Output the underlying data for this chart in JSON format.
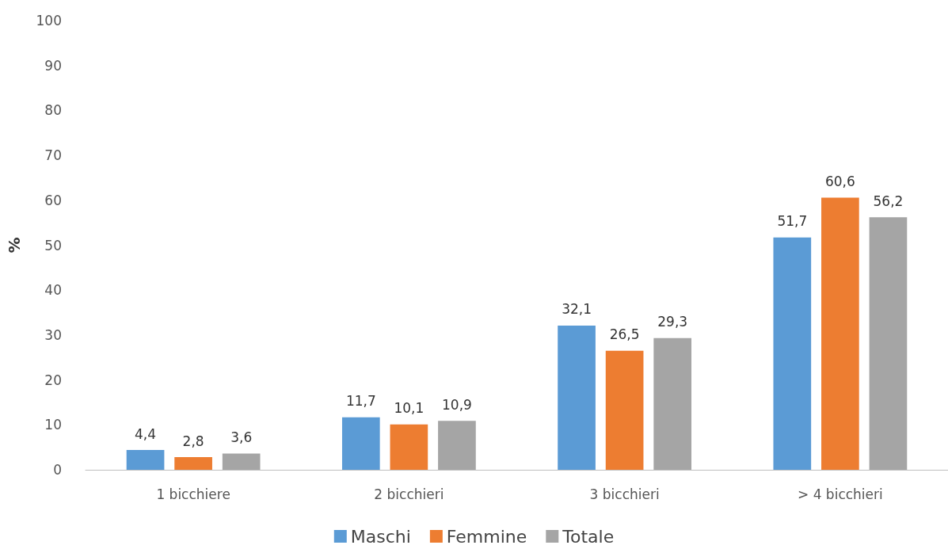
{
  "chart_data": {
    "type": "bar",
    "ylabel": "%",
    "categories": [
      "1 bicchiere",
      "2 bicchieri",
      "3 bicchieri",
      "> 4 bicchieri"
    ],
    "series": [
      {
        "name": "Maschi",
        "color": "#5b9bd5",
        "values": [
          4.4,
          11.7,
          32.1,
          51.7
        ],
        "value_labels": [
          "4,4",
          "11,7",
          "32,1",
          "51,7"
        ]
      },
      {
        "name": "Femmine",
        "color": "#ed7d31",
        "values": [
          2.8,
          10.1,
          26.5,
          60.6
        ],
        "value_labels": [
          "2,8",
          "10,1",
          "26,5",
          "60,6"
        ]
      },
      {
        "name": "Totale",
        "color": "#a5a5a5",
        "values": [
          3.6,
          10.9,
          29.3,
          56.2
        ],
        "value_labels": [
          "3,6",
          "10,9",
          "29,3",
          "56,2"
        ]
      }
    ],
    "ylim": [
      0,
      100
    ],
    "yticks": [
      0,
      10,
      20,
      30,
      40,
      50,
      60,
      70,
      80,
      90,
      100
    ],
    "grid": false,
    "legend": "bottom"
  }
}
